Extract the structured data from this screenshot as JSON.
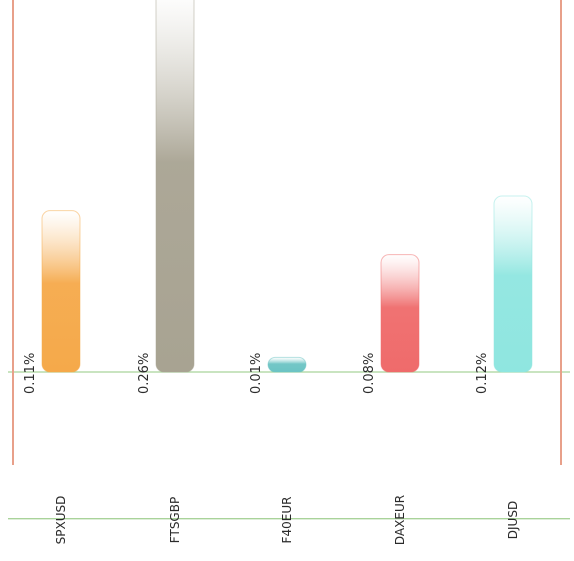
{
  "chart_data": {
    "type": "bar",
    "categories": [
      "SPXUSD",
      "FTSGBP",
      "F40EUR",
      "DAXEUR",
      "DJUSD"
    ],
    "values": [
      0.11,
      0.26,
      0.01,
      0.08,
      0.12
    ],
    "value_labels": [
      "0.11%",
      "0.26%",
      "0.01%",
      "0.08%",
      "0.12%"
    ],
    "colors": [
      "#f5a94a",
      "#a8a392",
      "#6cc4c4",
      "#ef6b6b",
      "#8fe6e0"
    ],
    "title": "",
    "xlabel": "",
    "ylabel": "",
    "ylim": [
      -0.1,
      0.45
    ],
    "gridlines": [
      -0.1,
      0,
      0.45
    ],
    "grid": true,
    "legend": "none"
  }
}
